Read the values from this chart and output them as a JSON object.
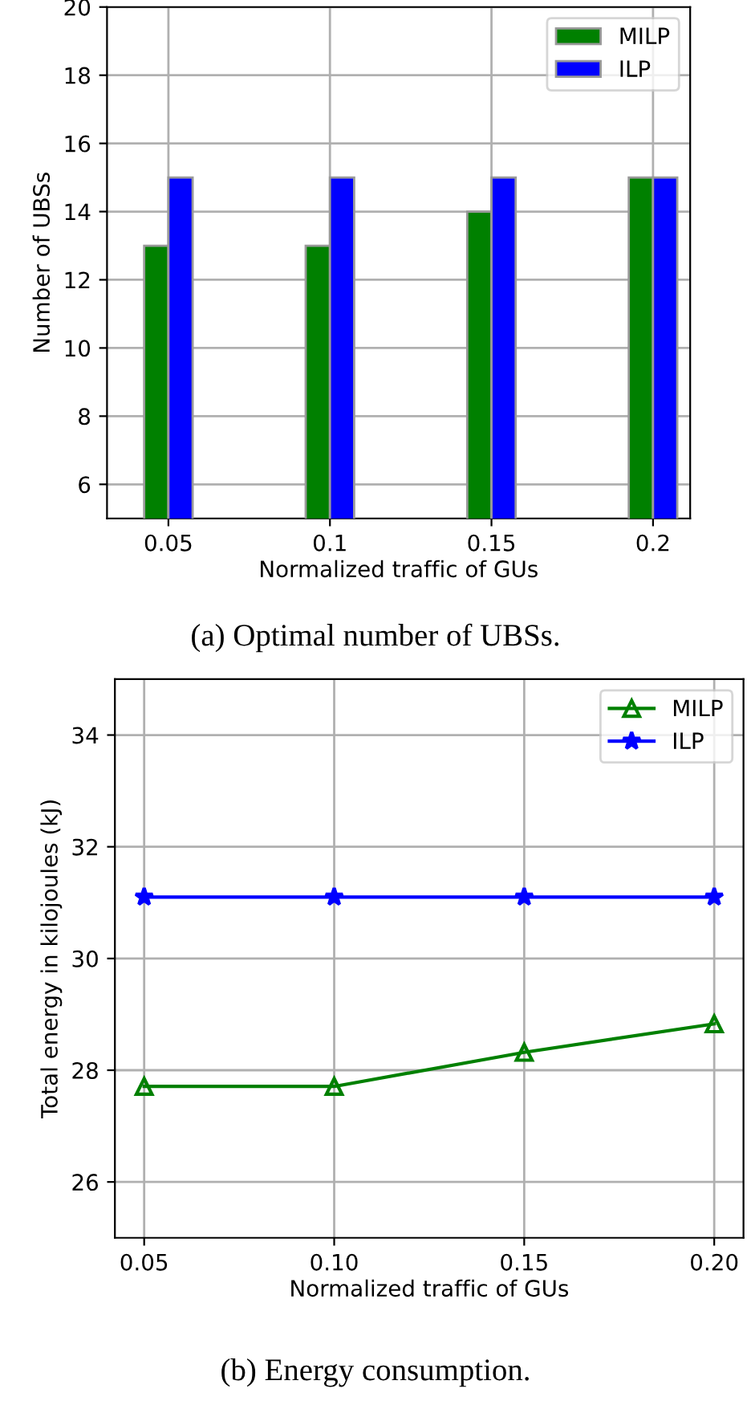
{
  "chart_data": [
    {
      "type": "bar",
      "categories": [
        "0.05",
        "0.1",
        "0.15",
        "0.2"
      ],
      "xlabel": "Normalized traffic of GUs",
      "ylabel": "Number of UBSs",
      "series": [
        {
          "name": "MILP",
          "color": "#008000",
          "values": [
            13,
            13,
            14,
            15
          ]
        },
        {
          "name": "ILP",
          "color": "#0000ff",
          "values": [
            15,
            15,
            15,
            15
          ]
        }
      ],
      "ylim": [
        5,
        20
      ],
      "yticks": [
        6,
        8,
        10,
        12,
        14,
        16,
        18,
        20
      ],
      "grid": true,
      "legend": "top right",
      "annotations": [
        "(a) Optimal number of UBSs."
      ]
    },
    {
      "type": "line",
      "x": [
        0.05,
        0.1,
        0.15,
        0.2
      ],
      "xlabel": "Normalized traffic of GUs",
      "ylabel": "Total energy in kilojoules (kJ)",
      "series": [
        {
          "name": "MILP",
          "color": "#008000",
          "values": [
            27.71,
            27.71,
            28.32,
            28.83
          ],
          "marker": "triangle"
        },
        {
          "name": "ILP",
          "color": "#0000ff",
          "values": [
            31.1,
            31.1,
            31.1,
            31.1
          ],
          "marker": "star"
        }
      ],
      "xlim": [
        0.0423,
        0.2077
      ],
      "xticks": [
        {
          "value": 0.05,
          "label": "0.05"
        },
        {
          "value": 0.1,
          "label": "0.10"
        },
        {
          "value": 0.15,
          "label": "0.15"
        },
        {
          "value": 0.2,
          "label": "0.20"
        }
      ],
      "ylim": [
        25,
        35
      ],
      "yticks": [
        26,
        28,
        30,
        32,
        34
      ],
      "grid": true,
      "legend": "top right",
      "line_style": "solid",
      "annotations": [
        "(b) Energy consumption."
      ]
    }
  ]
}
